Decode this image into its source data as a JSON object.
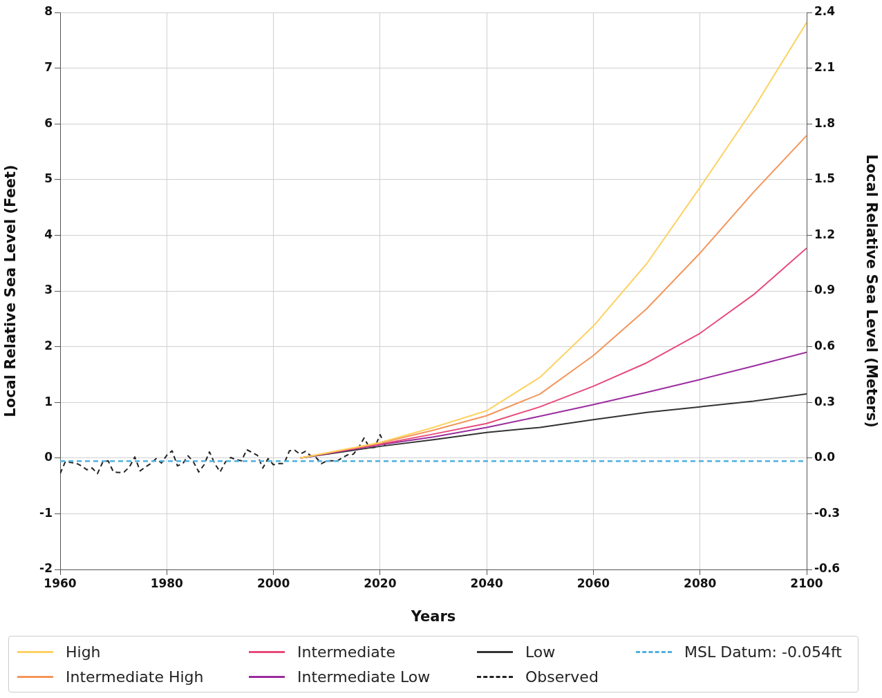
{
  "chart_data": {
    "type": "line",
    "xlabel": "Years",
    "ylabel": "Local Relative Sea Level (Feet)",
    "y2label": "Local Relative Sea Level (Meters)",
    "xlim": [
      1960,
      2100
    ],
    "xticks": [
      1960,
      1980,
      2000,
      2020,
      2040,
      2060,
      2080,
      2100
    ],
    "ylim": [
      -2,
      8
    ],
    "yticks": [
      -2,
      -1,
      0,
      1,
      2,
      3,
      4,
      5,
      6,
      7,
      8
    ],
    "y2lim": [
      -0.6,
      2.4
    ],
    "y2ticks": [
      {
        "value": -0.6,
        "label": "-0.6"
      },
      {
        "value": -0.3,
        "label": "-0.3"
      },
      {
        "value": 0,
        "label": "0.0"
      },
      {
        "value": 0.3,
        "label": "0.3"
      },
      {
        "value": 0.6,
        "label": "0.6"
      },
      {
        "value": 0.9,
        "label": "0.9"
      },
      {
        "value": 1.2,
        "label": "1.2"
      },
      {
        "value": 1.5,
        "label": "1.5"
      },
      {
        "value": 1.8,
        "label": "1.8"
      },
      {
        "value": 2.1,
        "label": "2.1"
      },
      {
        "value": 2.4,
        "label": "2.4"
      }
    ],
    "grid": true,
    "legend": "bottom",
    "marker": "none",
    "series": [
      {
        "name": "High",
        "color": "#fdd262",
        "line_style": "solid",
        "x": [
          2005,
          2020,
          2030,
          2040,
          2050,
          2060,
          2070,
          2080,
          2090,
          2100
        ],
        "values": [
          0,
          0.28,
          0.55,
          0.85,
          1.45,
          2.37,
          3.49,
          4.86,
          6.27,
          7.82
        ]
      },
      {
        "name": "Intermediate High",
        "color": "#f4955a",
        "line_style": "solid",
        "x": [
          2005,
          2020,
          2030,
          2040,
          2050,
          2060,
          2070,
          2080,
          2090,
          2100
        ],
        "values": [
          0,
          0.27,
          0.5,
          0.76,
          1.15,
          1.84,
          2.68,
          3.68,
          4.77,
          5.79
        ]
      },
      {
        "name": "Intermediate",
        "color": "#e8497a",
        "line_style": "solid",
        "x": [
          2005,
          2020,
          2030,
          2040,
          2050,
          2060,
          2070,
          2080,
          2090,
          2100
        ],
        "values": [
          0,
          0.25,
          0.43,
          0.62,
          0.92,
          1.29,
          1.71,
          2.24,
          2.93,
          3.77
        ]
      },
      {
        "name": "Intermediate Low",
        "color": "#9b2c9e",
        "line_style": "solid",
        "x": [
          2005,
          2020,
          2030,
          2040,
          2050,
          2060,
          2070,
          2080,
          2090,
          2100
        ],
        "values": [
          0,
          0.24,
          0.38,
          0.55,
          0.75,
          0.96,
          1.18,
          1.41,
          1.65,
          1.9
        ]
      },
      {
        "name": "Low",
        "color": "#333333",
        "line_style": "solid",
        "x": [
          2005,
          2020,
          2030,
          2040,
          2050,
          2060,
          2070,
          2080,
          2090,
          2100
        ],
        "values": [
          0,
          0.21,
          0.33,
          0.46,
          0.55,
          0.69,
          0.82,
          0.92,
          1.02,
          1.15
        ]
      },
      {
        "name": "Observed",
        "color": "#222222",
        "line_style": "dashed",
        "x": [
          1960,
          1961,
          1962,
          1963,
          1964,
          1965,
          1966,
          1967,
          1968,
          1969,
          1970,
          1971,
          1972,
          1973,
          1974,
          1975,
          1976,
          1977,
          1978,
          1979,
          1980,
          1981,
          1982,
          1983,
          1984,
          1985,
          1986,
          1987,
          1988,
          1989,
          1990,
          1991,
          1992,
          1993,
          1994,
          1995,
          1996,
          1997,
          1998,
          1999,
          2000,
          2001,
          2002,
          2003,
          2004,
          2005,
          2006,
          2007,
          2008,
          2009,
          2010,
          2011,
          2012,
          2013,
          2014,
          2015,
          2016,
          2017,
          2018,
          2019,
          2020,
          2021
        ],
        "values": [
          -0.28,
          -0.06,
          -0.08,
          -0.09,
          -0.14,
          -0.21,
          -0.18,
          -0.28,
          -0.07,
          -0.05,
          -0.25,
          -0.26,
          -0.25,
          -0.16,
          0.02,
          -0.23,
          -0.16,
          -0.1,
          -0.01,
          -0.09,
          0.05,
          0.13,
          -0.14,
          -0.1,
          0.04,
          -0.07,
          -0.25,
          -0.12,
          0.11,
          -0.1,
          -0.25,
          -0.07,
          0.01,
          -0.03,
          -0.05,
          0.15,
          0.1,
          0.05,
          -0.18,
          -0.01,
          -0.12,
          -0.1,
          -0.1,
          0.13,
          0.14,
          0.07,
          0.12,
          0.04,
          0.01,
          -0.1,
          -0.05,
          -0.05,
          -0.05,
          0.01,
          0.06,
          0.07,
          0.19,
          0.36,
          0.19,
          0.19,
          0.42,
          0.22
        ]
      }
    ],
    "ref_lines": [
      {
        "axis": "y",
        "value": -0.054,
        "label": "MSL Datum: -0.054ft",
        "color": "#4fb0dd",
        "line_style": "dashed"
      }
    ]
  }
}
